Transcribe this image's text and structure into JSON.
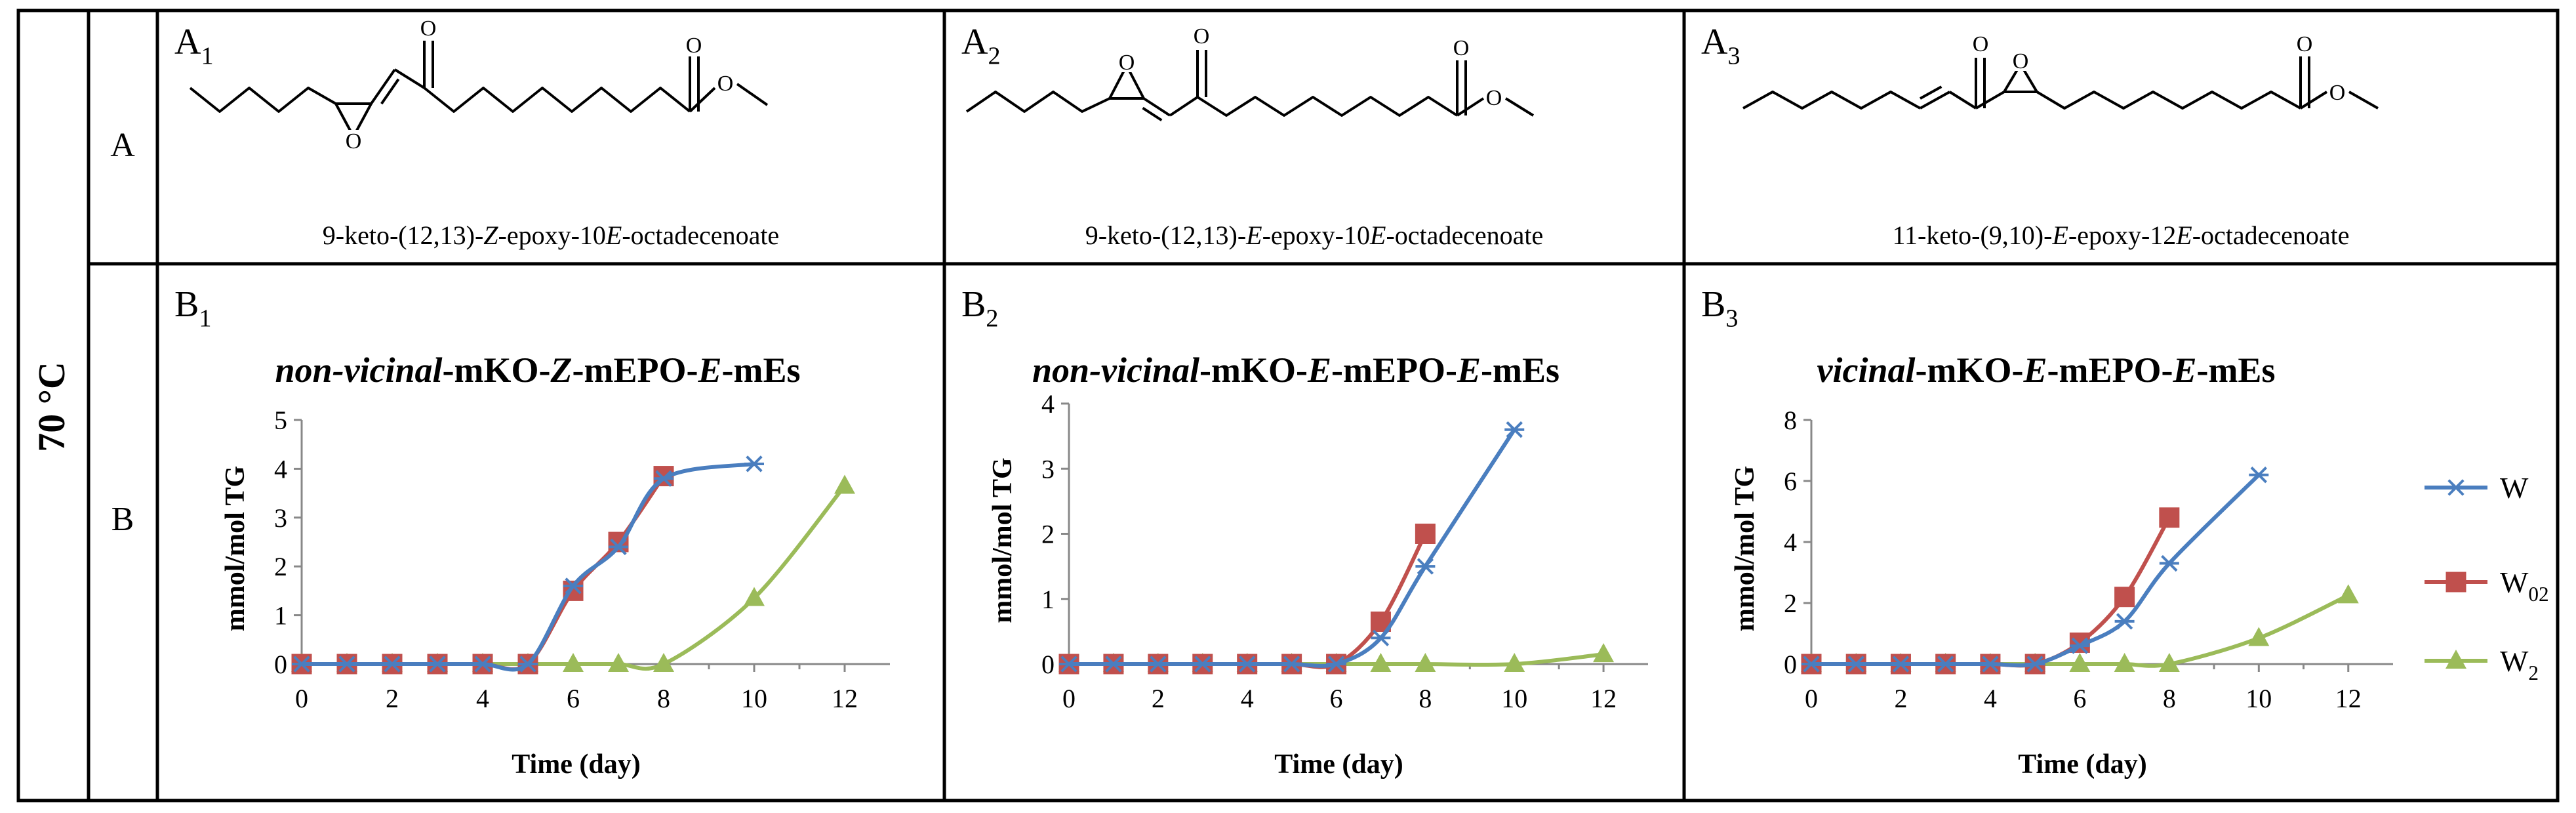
{
  "row_group_label": "70 °C",
  "rows": [
    {
      "label": "A"
    },
    {
      "label": "B"
    }
  ],
  "structures": [
    {
      "id_main": "A",
      "id_sub": "1",
      "name_parts": [
        [
          "9-keto-(12,13)-",
          ""
        ],
        [
          "Z",
          "i"
        ],
        [
          "-epoxy-10",
          ""
        ],
        [
          "E",
          "i"
        ],
        [
          "-octadecenoate",
          ""
        ]
      ],
      "atoms": [
        "O",
        "O",
        "O",
        "O"
      ]
    },
    {
      "id_main": "A",
      "id_sub": "2",
      "name_parts": [
        [
          "9-keto-(12,13)-",
          ""
        ],
        [
          "E",
          "i"
        ],
        [
          "-epoxy-10",
          ""
        ],
        [
          "E",
          "i"
        ],
        [
          "-octadecenoate",
          ""
        ]
      ],
      "atoms": [
        "O",
        "O",
        "O",
        "O"
      ]
    },
    {
      "id_main": "A",
      "id_sub": "3",
      "name_parts": [
        [
          "11-keto-(9,10)-",
          ""
        ],
        [
          "E",
          "i"
        ],
        [
          "-epoxy-12",
          ""
        ],
        [
          "E",
          "i"
        ],
        [
          "-octadecenoate",
          ""
        ]
      ],
      "atoms": [
        "O",
        "O",
        "O",
        "O"
      ]
    }
  ],
  "legend": [
    {
      "main": "W",
      "sub": "",
      "color": "#4a7ebf",
      "marker": "star"
    },
    {
      "main": "W",
      "sub": "02",
      "color": "#c0504d",
      "marker": "square"
    },
    {
      "main": "W",
      "sub": "2",
      "color": "#9bbb59",
      "marker": "triangle"
    }
  ],
  "chart_data": [
    {
      "type": "line",
      "panel_main": "B",
      "panel_sub": "1",
      "title_parts": [
        [
          "non-vicinal",
          "bi"
        ],
        [
          "-mKO-",
          "b"
        ],
        [
          "Z",
          "bi"
        ],
        [
          "-mEPO-",
          "b"
        ],
        [
          "E",
          "bi"
        ],
        [
          "-mEs",
          "b"
        ]
      ],
      "xlabel": "Time (day)",
      "ylabel": "mmol/mol TG",
      "xlim": [
        0,
        13
      ],
      "ylim": [
        0,
        5
      ],
      "xticks": [
        0,
        2,
        4,
        6,
        8,
        10,
        12
      ],
      "yticks": [
        0,
        1,
        2,
        3,
        4,
        5
      ],
      "series": [
        {
          "legend_index": 0,
          "points": [
            [
              0,
              0
            ],
            [
              1,
              0
            ],
            [
              2,
              0
            ],
            [
              3,
              0
            ],
            [
              4,
              0
            ],
            [
              5,
              0
            ],
            [
              6,
              1.6
            ],
            [
              7,
              2.4
            ],
            [
              8,
              3.8
            ],
            [
              10,
              4.1
            ]
          ]
        },
        {
          "legend_index": 1,
          "points": [
            [
              0,
              0
            ],
            [
              1,
              0
            ],
            [
              2,
              0
            ],
            [
              3,
              0
            ],
            [
              4,
              0
            ],
            [
              5,
              0
            ],
            [
              6,
              1.5
            ],
            [
              7,
              2.5
            ],
            [
              8,
              3.85
            ]
          ]
        },
        {
          "legend_index": 2,
          "points": [
            [
              0,
              0
            ],
            [
              1,
              0
            ],
            [
              2,
              0
            ],
            [
              3,
              0
            ],
            [
              4,
              0
            ],
            [
              5,
              0
            ],
            [
              6,
              0
            ],
            [
              7,
              0
            ],
            [
              8,
              0
            ],
            [
              10,
              1.35
            ],
            [
              12,
              3.65
            ]
          ]
        }
      ]
    },
    {
      "type": "line",
      "panel_main": "B",
      "panel_sub": "2",
      "title_parts": [
        [
          "non-vicinal",
          "bi"
        ],
        [
          "-mKO-",
          "b"
        ],
        [
          "E",
          "bi"
        ],
        [
          "-mEPO-",
          "b"
        ],
        [
          "E",
          "bi"
        ],
        [
          "-mEs",
          "b"
        ]
      ],
      "xlabel": "Time (day)",
      "ylabel": "mmol/mol TG",
      "xlim": [
        0,
        13
      ],
      "ylim": [
        0,
        4
      ],
      "xticks": [
        0,
        2,
        4,
        6,
        8,
        10,
        12
      ],
      "yticks": [
        0,
        1,
        2,
        3,
        4
      ],
      "series": [
        {
          "legend_index": 0,
          "points": [
            [
              0,
              0
            ],
            [
              1,
              0
            ],
            [
              2,
              0
            ],
            [
              3,
              0
            ],
            [
              4,
              0
            ],
            [
              5,
              0
            ],
            [
              6,
              0
            ],
            [
              7,
              0.4
            ],
            [
              8,
              1.5
            ],
            [
              10,
              3.6
            ]
          ]
        },
        {
          "legend_index": 1,
          "points": [
            [
              0,
              0
            ],
            [
              1,
              0
            ],
            [
              2,
              0
            ],
            [
              3,
              0
            ],
            [
              4,
              0
            ],
            [
              5,
              0
            ],
            [
              6,
              0
            ],
            [
              7,
              0.65
            ],
            [
              8,
              2.0
            ]
          ]
        },
        {
          "legend_index": 2,
          "points": [
            [
              0,
              0
            ],
            [
              1,
              0
            ],
            [
              2,
              0
            ],
            [
              3,
              0
            ],
            [
              4,
              0
            ],
            [
              5,
              0
            ],
            [
              6,
              0
            ],
            [
              7,
              0
            ],
            [
              8,
              0
            ],
            [
              10,
              0
            ],
            [
              12,
              0.15
            ]
          ]
        }
      ]
    },
    {
      "type": "line",
      "panel_main": "B",
      "panel_sub": "3",
      "title_parts": [
        [
          "vicinal",
          "bi"
        ],
        [
          "-mKO-",
          "b"
        ],
        [
          "E",
          "bi"
        ],
        [
          "-mEPO-",
          "b"
        ],
        [
          "E",
          "bi"
        ],
        [
          "-mEs",
          "b"
        ]
      ],
      "xlabel": "Time (day)",
      "ylabel": "mmol/mol TG",
      "xlim": [
        0,
        13
      ],
      "ylim": [
        0,
        8
      ],
      "xticks": [
        0,
        2,
        4,
        6,
        8,
        10,
        12
      ],
      "yticks": [
        0,
        2,
        4,
        6,
        8
      ],
      "series": [
        {
          "legend_index": 0,
          "points": [
            [
              0,
              0
            ],
            [
              1,
              0
            ],
            [
              2,
              0
            ],
            [
              3,
              0
            ],
            [
              4,
              0
            ],
            [
              5,
              0
            ],
            [
              6,
              0.6
            ],
            [
              7,
              1.4
            ],
            [
              8,
              3.3
            ],
            [
              10,
              6.2
            ]
          ]
        },
        {
          "legend_index": 1,
          "points": [
            [
              0,
              0
            ],
            [
              1,
              0
            ],
            [
              2,
              0
            ],
            [
              3,
              0
            ],
            [
              4,
              0
            ],
            [
              5,
              0
            ],
            [
              6,
              0.7
            ],
            [
              7,
              2.2
            ],
            [
              8,
              4.8
            ]
          ]
        },
        {
          "legend_index": 2,
          "points": [
            [
              0,
              0
            ],
            [
              1,
              0
            ],
            [
              2,
              0
            ],
            [
              3,
              0
            ],
            [
              4,
              0
            ],
            [
              5,
              0
            ],
            [
              6,
              0
            ],
            [
              7,
              0
            ],
            [
              8,
              0
            ],
            [
              10,
              0.85
            ],
            [
              12,
              2.25
            ]
          ]
        }
      ]
    }
  ]
}
